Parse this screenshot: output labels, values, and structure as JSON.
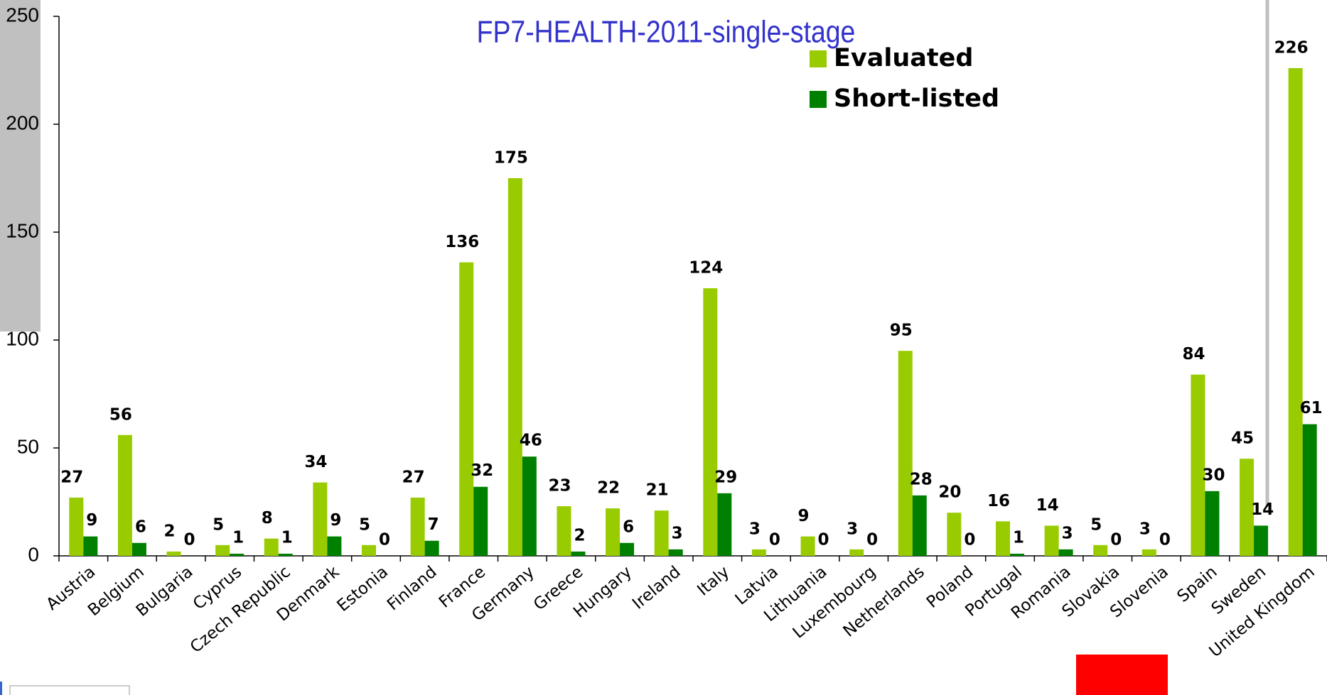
{
  "chart_data": {
    "type": "bar",
    "title": "FP7-HEALTH-2011-single-stage",
    "categories": [
      "Austria",
      "Belgium",
      "Bulgaria",
      "Cyprus",
      "Czech Republic",
      "Denmark",
      "Estonia",
      "Finland",
      "France",
      "Germany",
      "Greece",
      "Hungary",
      "Ireland",
      "Italy",
      "Latvia",
      "Lithuania",
      "Luxembourg",
      "Netherlands",
      "Poland",
      "Portugal",
      "Romania",
      "Slovakia",
      "Slovenia",
      "Spain",
      "Sweden",
      "United Kingdom"
    ],
    "series": [
      {
        "name": "Evaluated",
        "color": "#99cc00",
        "values": [
          27,
          56,
          2,
          5,
          8,
          34,
          5,
          27,
          136,
          175,
          23,
          22,
          21,
          124,
          3,
          9,
          3,
          95,
          20,
          16,
          14,
          5,
          3,
          84,
          45,
          226
        ]
      },
      {
        "name": "Short-listed",
        "color": "#008000",
        "values": [
          9,
          6,
          0,
          1,
          1,
          9,
          0,
          7,
          32,
          46,
          2,
          6,
          3,
          29,
          0,
          0,
          0,
          28,
          0,
          1,
          3,
          0,
          0,
          30,
          14,
          61
        ]
      }
    ],
    "ylim": [
      0,
      250
    ],
    "yticks": [
      0,
      50,
      100,
      150,
      200,
      250
    ]
  }
}
